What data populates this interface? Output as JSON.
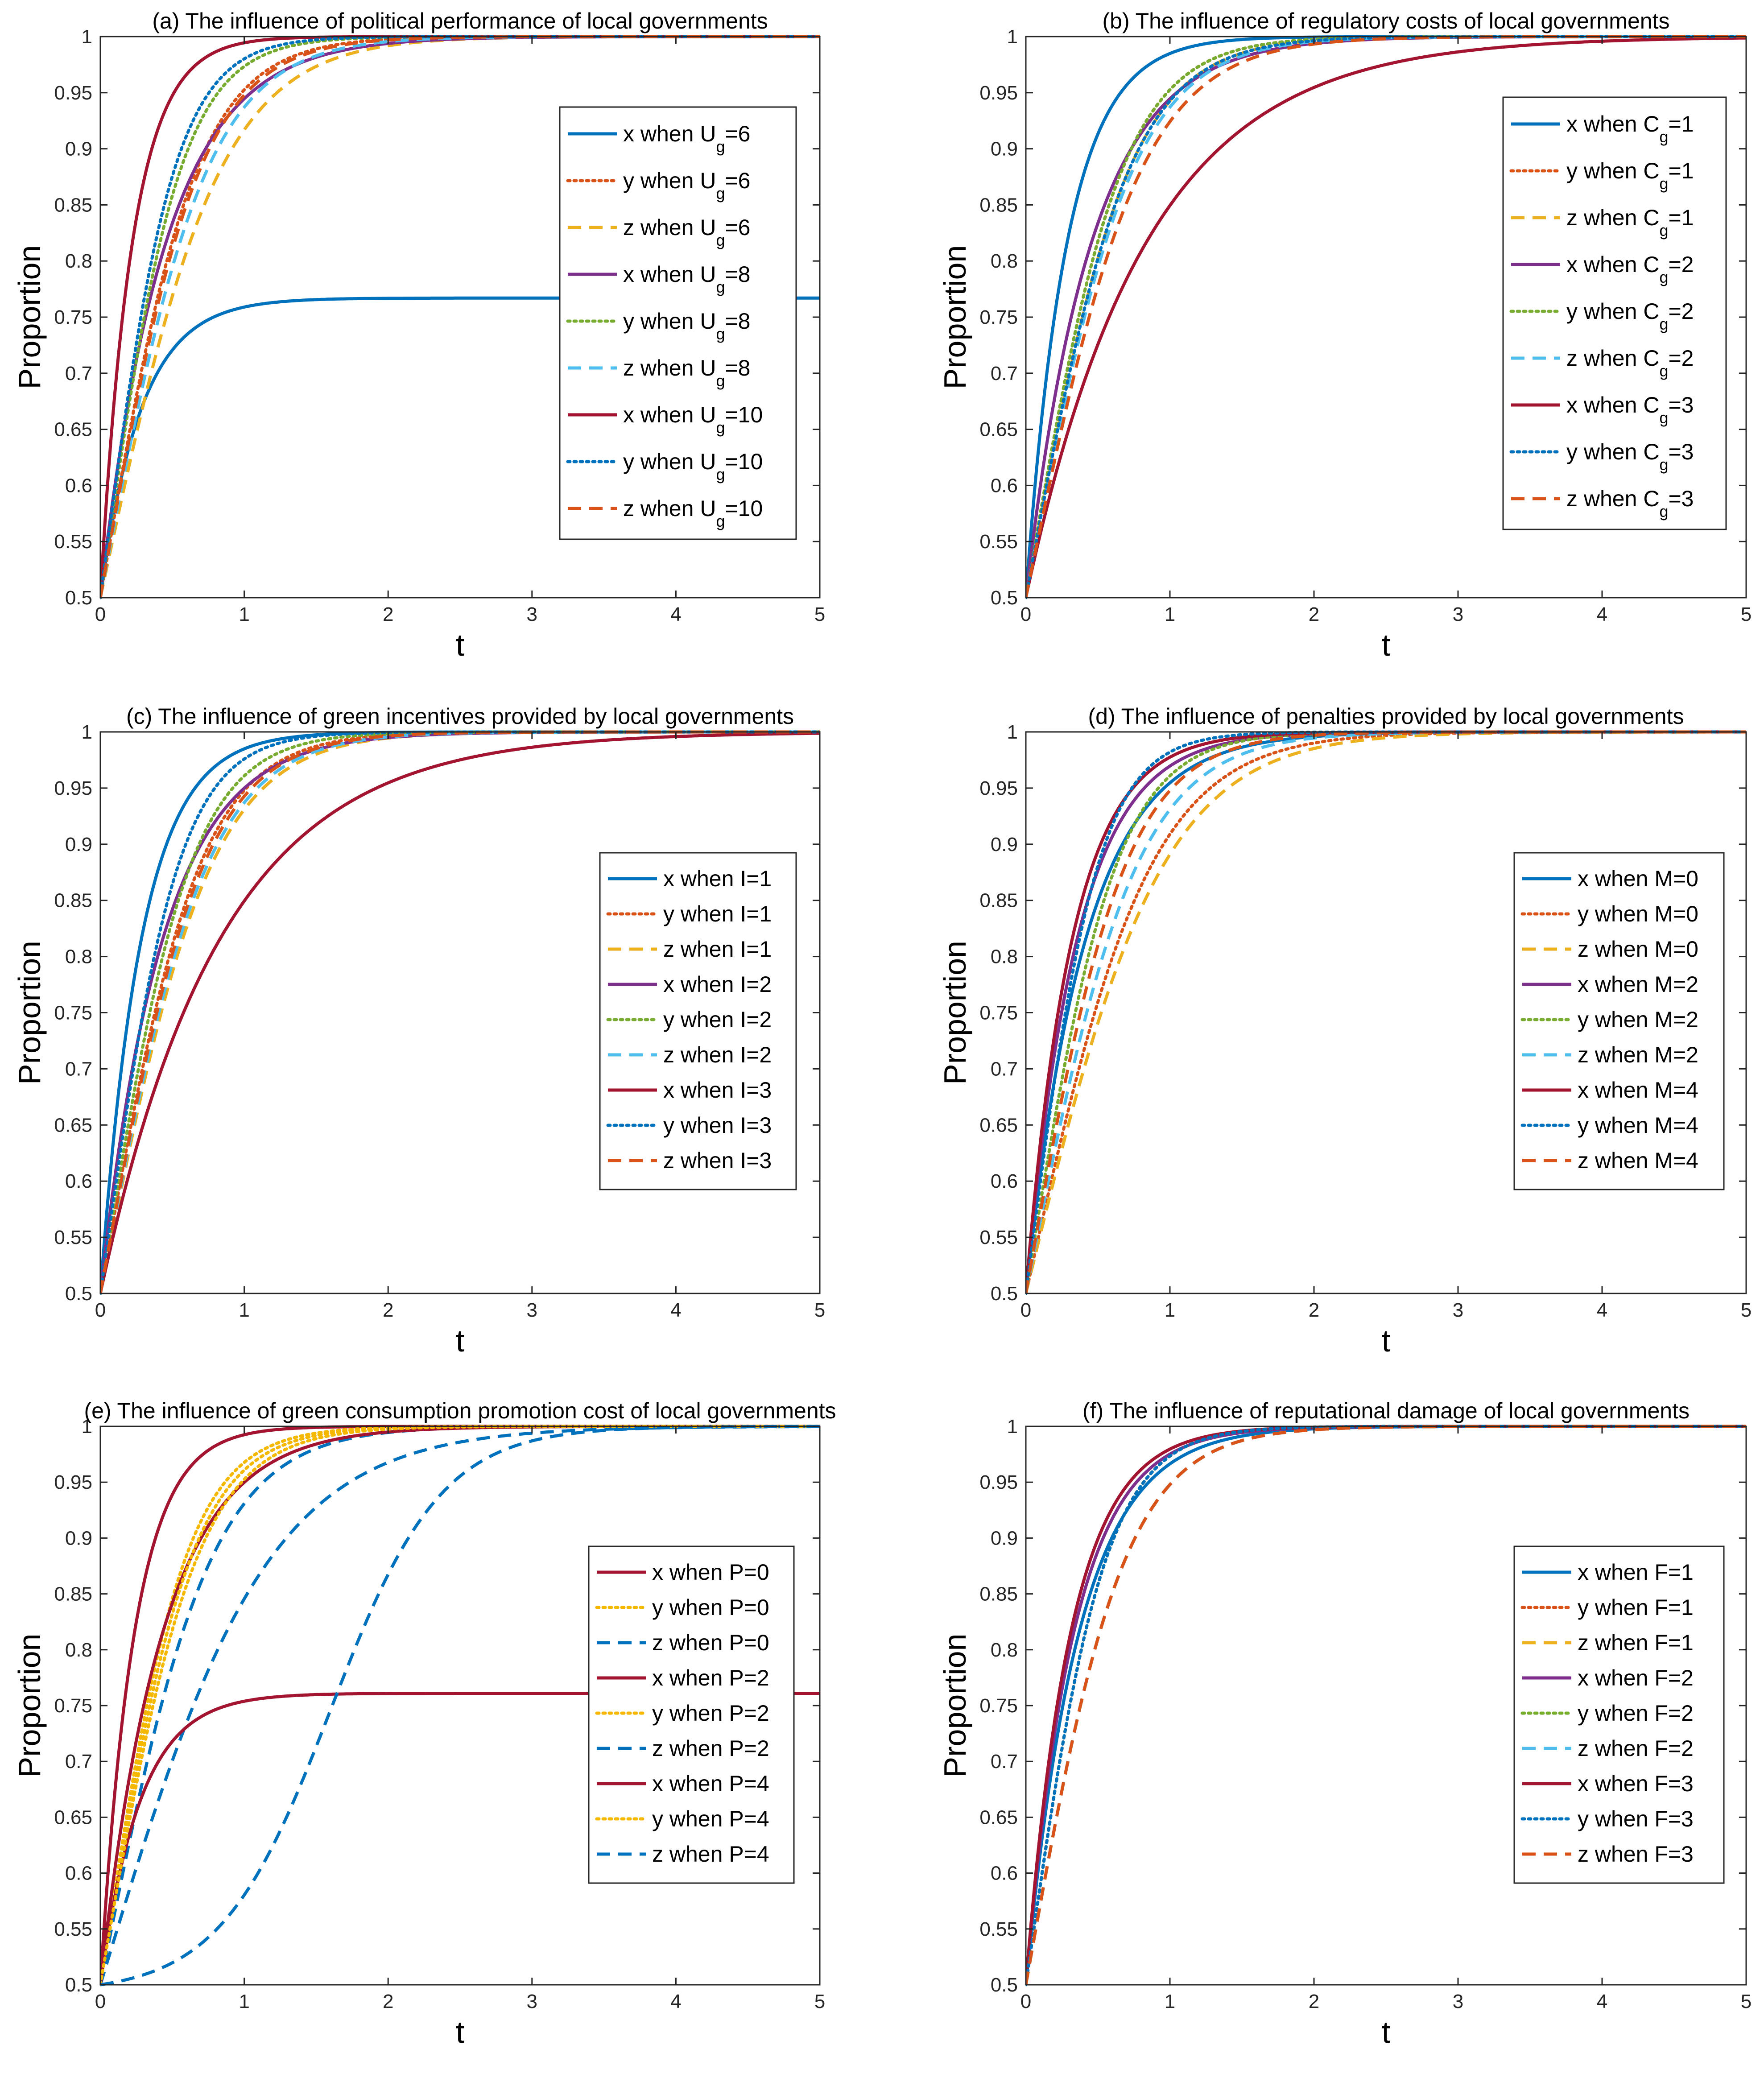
{
  "colors": {
    "blue": "#0072BD",
    "orange": "#D95319",
    "yellow": "#EDB120",
    "purple": "#7E2F8E",
    "green": "#77AC30",
    "cyan": "#4DBEEE",
    "red": "#A2142F"
  },
  "common": {
    "ylabel": "Proportion",
    "xlabel": "t",
    "xlim": [
      0,
      5
    ],
    "ylim": [
      0.5,
      1
    ],
    "xticks": [
      "0",
      "1",
      "2",
      "3",
      "4",
      "5"
    ],
    "yticks": [
      "0.5",
      "0.55",
      "0.6",
      "0.65",
      "0.7",
      "0.75",
      "0.8",
      "0.85",
      "0.9",
      "0.95",
      "1"
    ]
  },
  "chart_data": [
    {
      "type": "line",
      "title": "(a) The influence of political performance of local governments",
      "xlabel": "t",
      "ylabel": "Proportion",
      "xlim": [
        0,
        5
      ],
      "ylim": [
        0.5,
        1
      ],
      "legend_position": "right",
      "series": [
        {
          "name": "x when U",
          "sub": "g",
          "suffix": "=6",
          "color": "#0072BD",
          "style": "solid",
          "end": 0.767,
          "k": 3.5,
          "shape": "exp"
        },
        {
          "name": "y when U",
          "sub": "g",
          "suffix": "=6",
          "color": "#D95319",
          "style": "dotted",
          "end": 1,
          "k": 3.0,
          "shape": "logistic"
        },
        {
          "name": "z when U",
          "sub": "g",
          "suffix": "=6",
          "color": "#EDB120",
          "style": "dashed",
          "end": 1,
          "k": 2.4,
          "shape": "logistic"
        },
        {
          "name": "x when U",
          "sub": "g",
          "suffix": "=8",
          "color": "#7E2F8E",
          "style": "solid",
          "end": 1,
          "k": 2.2,
          "shape": "exp"
        },
        {
          "name": "y when U",
          "sub": "g",
          "suffix": "=8",
          "color": "#77AC30",
          "style": "dotted",
          "end": 1,
          "k": 3.6,
          "shape": "logistic"
        },
        {
          "name": "z when U",
          "sub": "g",
          "suffix": "=8",
          "color": "#4DBEEE",
          "style": "dashed",
          "end": 1,
          "k": 2.7,
          "shape": "logistic"
        },
        {
          "name": "x when U",
          "sub": "g",
          "suffix": "=10",
          "color": "#A2142F",
          "style": "solid",
          "end": 1,
          "k": 4.5,
          "shape": "exp"
        },
        {
          "name": "y when U",
          "sub": "g",
          "suffix": "=10",
          "color": "#0072BD",
          "style": "dotted",
          "end": 1,
          "k": 3.9,
          "shape": "logistic"
        },
        {
          "name": "z when U",
          "sub": "g",
          "suffix": "=10",
          "color": "#D95319",
          "style": "dashed",
          "end": 1,
          "k": 2.9,
          "shape": "logistic"
        }
      ]
    },
    {
      "type": "line",
      "title": "(b) The influence of regulatory costs of local governments",
      "xlabel": "t",
      "ylabel": "Proportion",
      "xlim": [
        0,
        5
      ],
      "ylim": [
        0.5,
        1
      ],
      "legend_position": "right",
      "series": [
        {
          "name": "x when C",
          "sub": "g",
          "suffix": "=1",
          "color": "#0072BD",
          "style": "solid",
          "end": 1,
          "k": 3.5,
          "shape": "exp"
        },
        {
          "name": "y when C",
          "sub": "g",
          "suffix": "=1",
          "color": "#D95319",
          "style": "dotted",
          "end": 1,
          "k": 3.0,
          "shape": "logistic"
        },
        {
          "name": "z when C",
          "sub": "g",
          "suffix": "=1",
          "color": "#EDB120",
          "style": "dashed",
          "end": 1,
          "k": 2.8,
          "shape": "logistic"
        },
        {
          "name": "x when C",
          "sub": "g",
          "suffix": "=2",
          "color": "#7E2F8E",
          "style": "solid",
          "end": 1,
          "k": 2.2,
          "shape": "exp"
        },
        {
          "name": "y when C",
          "sub": "g",
          "suffix": "=2",
          "color": "#77AC30",
          "style": "dotted",
          "end": 1,
          "k": 3.0,
          "shape": "logistic"
        },
        {
          "name": "z when C",
          "sub": "g",
          "suffix": "=2",
          "color": "#4DBEEE",
          "style": "dashed",
          "end": 1,
          "k": 2.7,
          "shape": "logistic"
        },
        {
          "name": "x when C",
          "sub": "g",
          "suffix": "=3",
          "color": "#A2142F",
          "style": "solid",
          "end": 1,
          "k": 1.2,
          "shape": "exp"
        },
        {
          "name": "y when C",
          "sub": "g",
          "suffix": "=3",
          "color": "#0072BD",
          "style": "dotted",
          "end": 1,
          "k": 2.8,
          "shape": "logistic"
        },
        {
          "name": "z when C",
          "sub": "g",
          "suffix": "=3",
          "color": "#D95319",
          "style": "dashed",
          "end": 1,
          "k": 2.5,
          "shape": "logistic"
        }
      ]
    },
    {
      "type": "line",
      "title": "(c)  The influence of green incentives provided by local governments",
      "xlabel": "t",
      "ylabel": "Proportion",
      "xlim": [
        0,
        5
      ],
      "ylim": [
        0.5,
        1
      ],
      "legend_position": "right",
      "series": [
        {
          "name": "x when I=1",
          "sub": "",
          "suffix": "",
          "color": "#0072BD",
          "style": "solid",
          "end": 1,
          "k": 3.5,
          "shape": "exp"
        },
        {
          "name": "y when I=1",
          "sub": "",
          "suffix": "",
          "color": "#D95319",
          "style": "dotted",
          "end": 1,
          "k": 2.9,
          "shape": "logistic"
        },
        {
          "name": "z when I=1",
          "sub": "",
          "suffix": "",
          "color": "#EDB120",
          "style": "dashed",
          "end": 1,
          "k": 2.6,
          "shape": "logistic"
        },
        {
          "name": "x when I=2",
          "sub": "",
          "suffix": "",
          "color": "#7E2F8E",
          "style": "solid",
          "end": 1,
          "k": 2.3,
          "shape": "exp"
        },
        {
          "name": "y when I=2",
          "sub": "",
          "suffix": "",
          "color": "#77AC30",
          "style": "dotted",
          "end": 1,
          "k": 3.2,
          "shape": "logistic"
        },
        {
          "name": "z when I=2",
          "sub": "",
          "suffix": "",
          "color": "#4DBEEE",
          "style": "dashed",
          "end": 1,
          "k": 2.7,
          "shape": "logistic"
        },
        {
          "name": "x when I=3",
          "sub": "",
          "suffix": "",
          "color": "#A2142F",
          "style": "solid",
          "end": 1,
          "k": 1.2,
          "shape": "exp"
        },
        {
          "name": "y when I=3",
          "sub": "",
          "suffix": "",
          "color": "#0072BD",
          "style": "dotted",
          "end": 1,
          "k": 3.7,
          "shape": "logistic"
        },
        {
          "name": "z when I=3",
          "sub": "",
          "suffix": "",
          "color": "#D95319",
          "style": "dashed",
          "end": 1,
          "k": 2.8,
          "shape": "logistic"
        }
      ]
    },
    {
      "type": "line",
      "title": "(d) The influence of penalties provided by local governments",
      "xlabel": "t",
      "ylabel": "Proportion",
      "xlim": [
        0,
        5
      ],
      "ylim": [
        0.5,
        1
      ],
      "legend_position": "right",
      "series": [
        {
          "name": "x when M=0",
          "sub": "",
          "suffix": "",
          "color": "#0072BD",
          "style": "solid",
          "end": 1,
          "k": 2.4,
          "shape": "exp"
        },
        {
          "name": "y when M=0",
          "sub": "",
          "suffix": "",
          "color": "#D95319",
          "style": "dotted",
          "end": 1,
          "k": 2.3,
          "shape": "logistic"
        },
        {
          "name": "z when M=0",
          "sub": "",
          "suffix": "",
          "color": "#EDB120",
          "style": "dashed",
          "end": 1,
          "k": 2.1,
          "shape": "logistic"
        },
        {
          "name": "x when M=2",
          "sub": "",
          "suffix": "",
          "color": "#7E2F8E",
          "style": "solid",
          "end": 1,
          "k": 2.8,
          "shape": "exp"
        },
        {
          "name": "y when M=2",
          "sub": "",
          "suffix": "",
          "color": "#77AC30",
          "style": "dotted",
          "end": 1,
          "k": 3.2,
          "shape": "logistic"
        },
        {
          "name": "z when M=2",
          "sub": "",
          "suffix": "",
          "color": "#4DBEEE",
          "style": "dashed",
          "end": 1,
          "k": 2.6,
          "shape": "logistic"
        },
        {
          "name": "x when M=4",
          "sub": "",
          "suffix": "",
          "color": "#A2142F",
          "style": "solid",
          "end": 1,
          "k": 3.1,
          "shape": "exp"
        },
        {
          "name": "y when M=4",
          "sub": "",
          "suffix": "",
          "color": "#0072BD",
          "style": "dotted",
          "end": 1,
          "k": 4.0,
          "shape": "logistic"
        },
        {
          "name": "z when M=4",
          "sub": "",
          "suffix": "",
          "color": "#D95319",
          "style": "dashed",
          "end": 1,
          "k": 2.9,
          "shape": "logistic"
        }
      ]
    },
    {
      "type": "line",
      "title": "(e) The influence of green consumption promotion cost of local governments",
      "xlabel": "t",
      "ylabel": "Proportion",
      "xlim": [
        0,
        5
      ],
      "ylim": [
        0.5,
        1
      ],
      "legend_position": "right",
      "series": [
        {
          "name": "x when P=0",
          "sub": "",
          "suffix": "",
          "color": "#A2142F",
          "style": "solid",
          "end": 1,
          "k": 4.2,
          "shape": "exp"
        },
        {
          "name": "y when P=0",
          "sub": "",
          "suffix": "",
          "color": "#F5B800",
          "style": "dotted",
          "end": 1,
          "k": 3.4,
          "shape": "logistic"
        },
        {
          "name": "z when P=0",
          "sub": "",
          "suffix": "",
          "color": "#0072BD",
          "style": "dashed",
          "end": 1,
          "k": 2.6,
          "shape": "logistic"
        },
        {
          "name": "x when P=2",
          "sub": "",
          "suffix": "",
          "color": "#A2142F",
          "style": "solid",
          "end": 1,
          "k": 2.3,
          "shape": "exp"
        },
        {
          "name": "y when P=2",
          "sub": "",
          "suffix": "",
          "color": "#F5B800",
          "style": "dotted",
          "end": 1,
          "k": 3.2,
          "shape": "logistic"
        },
        {
          "name": "z when P=2",
          "sub": "",
          "suffix": "",
          "color": "#0072BD",
          "style": "dashed",
          "end": 1,
          "k": 1.7,
          "shape": "logistic"
        },
        {
          "name": "x when P=4",
          "sub": "",
          "suffix": "",
          "color": "#A2142F",
          "style": "solid",
          "end": 0.761,
          "k": 3.6,
          "shape": "exp"
        },
        {
          "name": "y when P=4",
          "sub": "",
          "suffix": "",
          "color": "#F5B800",
          "style": "dotted",
          "end": 1,
          "k": 3.0,
          "shape": "logistic"
        },
        {
          "name": "z when P=4",
          "sub": "",
          "suffix": "",
          "color": "#0072BD",
          "style": "dashed",
          "end": 1,
          "k": 2.6,
          "shape": "sigmoid"
        }
      ]
    },
    {
      "type": "line",
      "title": "(f) The influence of reputational damage of local governments",
      "xlabel": "t",
      "ylabel": "Proportion",
      "xlim": [
        0,
        5
      ],
      "ylim": [
        0.5,
        1
      ],
      "legend_position": "right",
      "series": [
        {
          "name": "x when F=1",
          "sub": "",
          "suffix": "",
          "color": "#0072BD",
          "style": "solid",
          "end": 1,
          "k": 2.7,
          "shape": "exp"
        },
        {
          "name": "y when F=1",
          "sub": "",
          "suffix": "",
          "color": "#D95319",
          "style": "dotted",
          "end": 1,
          "k": 3.6,
          "shape": "logistic"
        },
        {
          "name": "z when F=1",
          "sub": "",
          "suffix": "",
          "color": "#EDB120",
          "style": "dashed",
          "end": 1,
          "k": 2.9,
          "shape": "logistic"
        },
        {
          "name": "x when F=2",
          "sub": "",
          "suffix": "",
          "color": "#7E2F8E",
          "style": "solid",
          "end": 1,
          "k": 3.0,
          "shape": "exp"
        },
        {
          "name": "y when F=2",
          "sub": "",
          "suffix": "",
          "color": "#77AC30",
          "style": "dotted",
          "end": 1,
          "k": 3.6,
          "shape": "logistic"
        },
        {
          "name": "z when F=2",
          "sub": "",
          "suffix": "",
          "color": "#4DBEEE",
          "style": "dashed",
          "end": 1,
          "k": 2.9,
          "shape": "logistic"
        },
        {
          "name": "x when F=3",
          "sub": "",
          "suffix": "",
          "color": "#A2142F",
          "style": "solid",
          "end": 1,
          "k": 3.2,
          "shape": "exp"
        },
        {
          "name": "y when F=3",
          "sub": "",
          "suffix": "",
          "color": "#0072BD",
          "style": "dotted",
          "end": 1,
          "k": 3.6,
          "shape": "logistic"
        },
        {
          "name": "z when F=3",
          "sub": "",
          "suffix": "",
          "color": "#D95319",
          "style": "dashed",
          "end": 1,
          "k": 2.9,
          "shape": "logistic"
        }
      ]
    }
  ]
}
